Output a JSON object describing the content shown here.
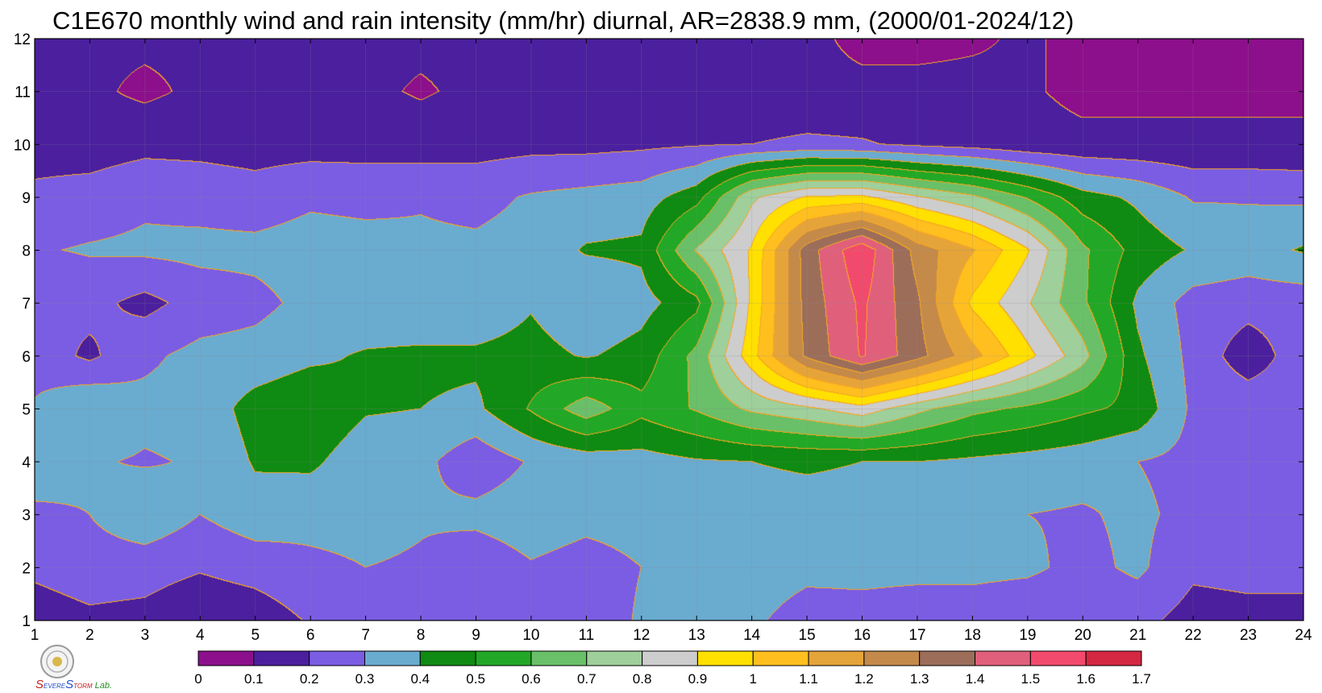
{
  "chart_data": {
    "type": "heatmap",
    "subtype": "filled-contour",
    "title": "C1E670 monthly wind and rain intensity (mm/hr) diurnal, AR=2838.9 mm, (2000/01-2024/12)",
    "xlabel": "",
    "ylabel": "",
    "x_ticks": [
      "1",
      "2",
      "3",
      "4",
      "5",
      "6",
      "7",
      "8",
      "9",
      "10",
      "11",
      "12",
      "13",
      "14",
      "15",
      "16",
      "17",
      "18",
      "19",
      "20",
      "21",
      "22",
      "23",
      "24"
    ],
    "y_ticks": [
      "1",
      "2",
      "3",
      "4",
      "5",
      "6",
      "7",
      "8",
      "9",
      "10",
      "11",
      "12"
    ],
    "xlim": [
      1,
      24
    ],
    "ylim": [
      1,
      12
    ],
    "grid": true,
    "contour_line_color": "#f5a623",
    "colorbar": {
      "placement": "bottom",
      "levels": [
        0,
        0.1,
        0.2,
        0.3,
        0.4,
        0.5,
        0.6,
        0.7,
        0.8,
        0.9,
        1,
        1.1,
        1.2,
        1.3,
        1.4,
        1.5,
        1.6,
        1.7
      ],
      "labels": [
        "0",
        "0.1",
        "0.2",
        "0.3",
        "0.4",
        "0.5",
        "0.6",
        "0.7",
        "0.8",
        "0.9",
        "1",
        "1.1",
        "1.2",
        "1.3",
        "1.4",
        "1.5",
        "1.6",
        "1.7"
      ],
      "colors": [
        "#8c0f8c",
        "#4b1f9e",
        "#7b5de3",
        "#6aabd0",
        "#0f8a12",
        "#22a826",
        "#69c068",
        "#9fcf9b",
        "#cdcdcd",
        "#ffe000",
        "#ffbf1f",
        "#e5a43a",
        "#c48a4a",
        "#9c6e5a",
        "#e0607c",
        "#f24a6c",
        "#d42842"
      ]
    },
    "month_profiles": [
      {
        "month": 1,
        "values": [
          0.15,
          0.18,
          0.17,
          0.12,
          0.14,
          0.21,
          0.2,
          0.24,
          0.21,
          0.24,
          0.25,
          0.31,
          0.33,
          0.32,
          0.25,
          0.26,
          0.24,
          0.24,
          0.22,
          0.22,
          0.23,
          0.16,
          0.17,
          0.17
        ]
      },
      {
        "month": 2,
        "values": [
          0.22,
          0.25,
          0.24,
          0.21,
          0.24,
          0.28,
          0.3,
          0.29,
          0.23,
          0.29,
          0.26,
          0.3,
          0.36,
          0.36,
          0.33,
          0.33,
          0.33,
          0.33,
          0.32,
          0.27,
          0.32,
          0.22,
          0.23,
          0.23
        ]
      },
      {
        "month": 3,
        "values": [
          0.29,
          0.3,
          0.38,
          0.3,
          0.36,
          0.33,
          0.33,
          0.31,
          0.33,
          0.36,
          0.33,
          0.34,
          0.37,
          0.37,
          0.37,
          0.37,
          0.34,
          0.33,
          0.3,
          0.29,
          0.32,
          0.27,
          0.27,
          0.26
        ]
      },
      {
        "month": 4,
        "values": [
          0.33,
          0.31,
          0.29,
          0.31,
          0.41,
          0.42,
          0.34,
          0.33,
          0.23,
          0.31,
          0.34,
          0.36,
          0.39,
          0.4,
          0.41,
          0.4,
          0.4,
          0.38,
          0.36,
          0.34,
          0.3,
          0.27,
          0.27,
          0.26
        ]
      },
      {
        "month": 5,
        "values": [
          0.31,
          0.4,
          0.33,
          0.34,
          0.44,
          0.48,
          0.41,
          0.4,
          0.38,
          0.51,
          0.66,
          0.53,
          0.61,
          0.72,
          0.78,
          0.86,
          0.73,
          0.63,
          0.58,
          0.52,
          0.47,
          0.28,
          0.27,
          0.26
        ]
      },
      {
        "month": 6,
        "values": [
          0.26,
          0.18,
          0.28,
          0.33,
          0.34,
          0.38,
          0.41,
          0.42,
          0.42,
          0.44,
          0.39,
          0.44,
          0.63,
          0.96,
          1.32,
          1.51,
          1.34,
          1.14,
          0.93,
          0.74,
          0.42,
          0.27,
          0.14,
          0.26
        ]
      },
      {
        "month": 7,
        "values": [
          0.2,
          0.23,
          0.17,
          0.24,
          0.27,
          0.33,
          0.33,
          0.32,
          0.32,
          0.39,
          0.31,
          0.36,
          0.47,
          0.92,
          1.34,
          1.52,
          1.32,
          0.98,
          0.81,
          0.62,
          0.38,
          0.26,
          0.24,
          0.24
        ]
      },
      {
        "month": 8,
        "values": [
          0.29,
          0.31,
          0.32,
          0.33,
          0.33,
          0.35,
          0.34,
          0.32,
          0.32,
          0.34,
          0.41,
          0.42,
          0.71,
          0.91,
          1.35,
          1.58,
          1.26,
          1.11,
          0.91,
          0.62,
          0.46,
          0.39,
          0.36,
          0.41
        ]
      },
      {
        "month": 9,
        "values": [
          0.22,
          0.24,
          0.28,
          0.26,
          0.24,
          0.28,
          0.27,
          0.29,
          0.27,
          0.31,
          0.33,
          0.35,
          0.46,
          0.78,
          0.91,
          0.92,
          0.81,
          0.72,
          0.59,
          0.44,
          0.38,
          0.29,
          0.29,
          0.28
        ]
      },
      {
        "month": 10,
        "values": [
          0.16,
          0.15,
          0.17,
          0.17,
          0.16,
          0.16,
          0.16,
          0.15,
          0.16,
          0.17,
          0.17,
          0.18,
          0.19,
          0.2,
          0.22,
          0.21,
          0.18,
          0.16,
          0.13,
          0.12,
          0.12,
          0.12,
          0.12,
          0.12
        ]
      },
      {
        "month": 11,
        "values": [
          0.12,
          0.12,
          0.08,
          0.12,
          0.12,
          0.12,
          0.12,
          0.09,
          0.12,
          0.12,
          0.12,
          0.12,
          0.12,
          0.12,
          0.12,
          0.12,
          0.12,
          0.12,
          0.11,
          0.08,
          0.08,
          0.08,
          0.08,
          0.08
        ]
      },
      {
        "month": 12,
        "values": [
          0.12,
          0.12,
          0.12,
          0.12,
          0.12,
          0.12,
          0.12,
          0.12,
          0.12,
          0.12,
          0.12,
          0.12,
          0.12,
          0.11,
          0.12,
          0.08,
          0.08,
          0.09,
          0.11,
          0.08,
          0.07,
          0.06,
          0.06,
          0.05
        ]
      }
    ]
  },
  "logo": {
    "icon": "severe-storm-lab-seal-icon",
    "text_parts": [
      "S",
      "EVERE",
      "S",
      "TORM",
      " Lab."
    ]
  }
}
